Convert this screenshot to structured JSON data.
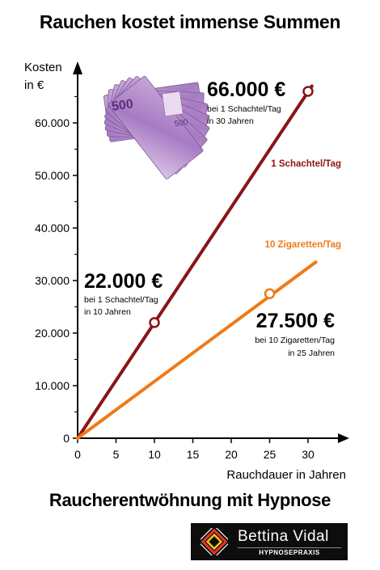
{
  "header": {
    "title": "Rauchen kostet immense Summen"
  },
  "footer": {
    "headline": "Raucherentwöhnung mit Hypnose",
    "brand_name": "Bettina Vidal",
    "brand_tagline": "HYPNOSEPRAXIS"
  },
  "chart_data": {
    "type": "line",
    "ylabel": "Kosten",
    "ylabel_unit": "in €",
    "xlabel": "Rauchdauer in Jahren",
    "xlim": [
      0,
      32
    ],
    "ylim": [
      0,
      70000
    ],
    "x_ticks": [
      "0",
      "5",
      "10",
      "15",
      "20",
      "25",
      "30"
    ],
    "x_tick_values": [
      0,
      5,
      10,
      15,
      20,
      25,
      30
    ],
    "y_ticks": [
      "0",
      "10.000",
      "20.000",
      "30.000",
      "40.000",
      "50.000",
      "60.000"
    ],
    "y_tick_values": [
      0,
      10000,
      20000,
      30000,
      40000,
      50000,
      60000
    ],
    "series": [
      {
        "name": "1 Schachtel/Tag",
        "color": "#8b1414",
        "points": [
          [
            0,
            0
          ],
          [
            30.5,
            67000
          ]
        ]
      },
      {
        "name": "10 Zigaretten/Tag",
        "color": "#ef7a16",
        "points": [
          [
            0,
            0
          ],
          [
            31,
            33500
          ]
        ]
      }
    ],
    "annotations": [
      {
        "series": 0,
        "x": 10,
        "y": 22000,
        "value": "22.000 €",
        "line1": "bei 1 Schachtel/Tag",
        "line2": "in 10 Jahren",
        "align": "left"
      },
      {
        "series": 0,
        "x": 30,
        "y": 66000,
        "value": "66.000 €",
        "line1": "bei 1 Schachtel/Tag",
        "line2": "in 30 Jahren",
        "align": "left"
      },
      {
        "series": 1,
        "x": 25,
        "y": 27500,
        "value": "27.500 €",
        "line1": "bei 10 Zigaretten/Tag",
        "line2": "in 25 Jahren",
        "align": "right"
      }
    ],
    "image": "euro-banknotes-fan"
  }
}
